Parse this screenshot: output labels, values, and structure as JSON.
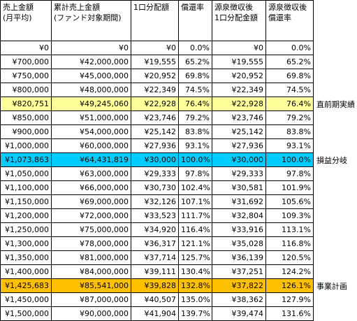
{
  "table": {
    "header": [
      [
        "売上金額",
        "(月平均)"
      ],
      [
        "累計売上金額",
        "(ファンド対象期間)"
      ],
      [
        "1口分配額"
      ],
      [
        "償還率"
      ],
      [
        "源泉徴収後",
        "1口分配金額"
      ],
      [
        "源泉徴収後",
        "償還率"
      ]
    ],
    "rows": [
      {
        "cells": [
          "¥0",
          "¥0",
          "¥0",
          "0.0%",
          "¥0",
          "0.0%"
        ]
      },
      {
        "cells": [
          "¥700,000",
          "¥42,000,000",
          "¥19,555",
          "65.2%",
          "¥19,555",
          "65.2%"
        ]
      },
      {
        "cells": [
          "¥750,000",
          "¥45,000,000",
          "¥20,952",
          "69.8%",
          "¥20,952",
          "69.8%"
        ]
      },
      {
        "cells": [
          "¥800,000",
          "¥48,000,000",
          "¥22,349",
          "74.5%",
          "¥22,349",
          "74.5%"
        ]
      },
      {
        "cells": [
          "¥820,751",
          "¥49,245,060",
          "¥22,928",
          "76.4%",
          "¥22,928",
          "76.4%"
        ],
        "note": "直前期実績",
        "highlight": "#ffff99"
      },
      {
        "cells": [
          "¥850,000",
          "¥51,000,000",
          "¥23,746",
          "79.2%",
          "¥23,746",
          "79.2%"
        ]
      },
      {
        "cells": [
          "¥900,000",
          "¥54,000,000",
          "¥25,142",
          "83.8%",
          "¥25,142",
          "83.8%"
        ]
      },
      {
        "cells": [
          "¥1,000,000",
          "¥60,000,000",
          "¥27,936",
          "93.1%",
          "¥27,936",
          "93.1%"
        ]
      },
      {
        "cells": [
          "¥1,073,863",
          "¥64,431,819",
          "¥30,000",
          "100.0%",
          "¥30,000",
          "100.0%"
        ],
        "note": "損益分岐",
        "highlight": "#00ccff"
      },
      {
        "cells": [
          "¥1,050,000",
          "¥63,000,000",
          "¥29,333",
          "97.8%",
          "¥29,333",
          "97.8%"
        ]
      },
      {
        "cells": [
          "¥1,100,000",
          "¥66,000,000",
          "¥30,730",
          "102.4%",
          "¥30,581",
          "101.9%"
        ]
      },
      {
        "cells": [
          "¥1,150,000",
          "¥69,000,000",
          "¥32,126",
          "107.1%",
          "¥31,692",
          "105.6%"
        ]
      },
      {
        "cells": [
          "¥1,200,000",
          "¥72,000,000",
          "¥33,523",
          "111.7%",
          "¥32,804",
          "109.3%"
        ]
      },
      {
        "cells": [
          "¥1,250,000",
          "¥75,000,000",
          "¥34,920",
          "116.4%",
          "¥33,916",
          "113.1%"
        ]
      },
      {
        "cells": [
          "¥1,300,000",
          "¥78,000,000",
          "¥36,317",
          "121.1%",
          "¥35,028",
          "116.8%"
        ]
      },
      {
        "cells": [
          "¥1,350,000",
          "¥81,000,000",
          "¥37,714",
          "125.7%",
          "¥36,139",
          "120.5%"
        ]
      },
      {
        "cells": [
          "¥1,400,000",
          "¥84,000,000",
          "¥39,111",
          "130.4%",
          "¥37,251",
          "124.2%"
        ]
      },
      {
        "cells": [
          "¥1,425,683",
          "¥85,541,000",
          "¥39,828",
          "132.8%",
          "¥37,822",
          "126.1%"
        ],
        "note": "事業計画",
        "highlight": "#ffc000"
      },
      {
        "cells": [
          "¥1,450,000",
          "¥87,000,000",
          "¥40,507",
          "135.0%",
          "¥38,362",
          "127.9%"
        ]
      },
      {
        "cells": [
          "¥1,500,000",
          "¥90,000,000",
          "¥41,904",
          "139.7%",
          "¥39,474",
          "131.6%"
        ]
      }
    ]
  }
}
